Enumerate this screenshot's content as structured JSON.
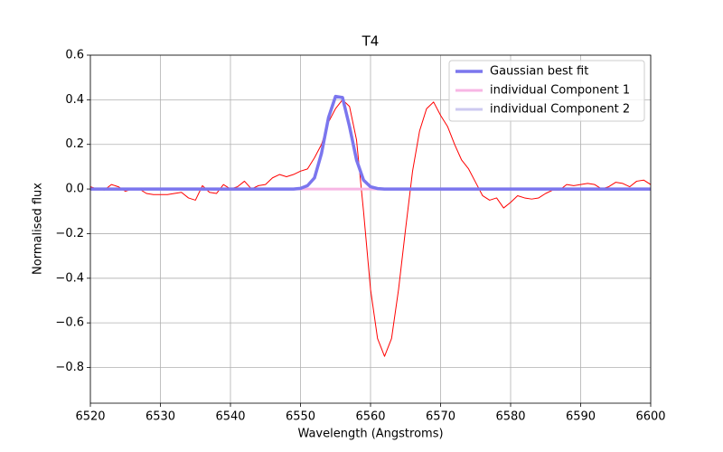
{
  "chart_data": {
    "type": "line",
    "title": "T4",
    "xlabel": "Wavelength (Angstroms)",
    "ylabel": "Normalised flux",
    "x": [
      6520,
      6521,
      6522,
      6523,
      6524,
      6525,
      6526,
      6527,
      6528,
      6529,
      6530,
      6531,
      6532,
      6533,
      6534,
      6535,
      6536,
      6537,
      6538,
      6539,
      6540,
      6541,
      6542,
      6543,
      6544,
      6545,
      6546,
      6547,
      6548,
      6549,
      6550,
      6551,
      6552,
      6553,
      6554,
      6555,
      6556,
      6557,
      6558,
      6559,
      6560,
      6561,
      6562,
      6563,
      6564,
      6565,
      6566,
      6567,
      6568,
      6569,
      6570,
      6571,
      6572,
      6573,
      6574,
      6575,
      6576,
      6577,
      6578,
      6579,
      6580,
      6581,
      6582,
      6583,
      6584,
      6585,
      6586,
      6587,
      6588,
      6589,
      6590,
      6591,
      6592,
      6593,
      6594,
      6595,
      6596,
      6597,
      6598,
      6599,
      6600
    ],
    "series": [
      {
        "color": "#ff0000",
        "width": 1,
        "values": [
          0.01,
          0.0,
          -0.005,
          0.02,
          0.01,
          -0.01,
          0.0,
          0.0,
          -0.02,
          -0.025,
          -0.025,
          -0.025,
          -0.02,
          -0.015,
          -0.04,
          -0.05,
          0.015,
          -0.015,
          -0.02,
          0.02,
          0.0,
          0.01,
          0.035,
          0.0,
          0.015,
          0.02,
          0.05,
          0.065,
          0.055,
          0.065,
          0.08,
          0.09,
          0.14,
          0.2,
          0.3,
          0.36,
          0.4,
          0.37,
          0.22,
          -0.1,
          -0.45,
          -0.67,
          -0.75,
          -0.67,
          -0.45,
          -0.18,
          0.08,
          0.26,
          0.36,
          0.39,
          0.33,
          0.28,
          0.2,
          0.13,
          0.09,
          0.03,
          -0.03,
          -0.05,
          -0.04,
          -0.085,
          -0.06,
          -0.03,
          -0.04,
          -0.045,
          -0.04,
          -0.02,
          -0.005,
          -0.005,
          0.02,
          0.015,
          0.02,
          0.025,
          0.02,
          0.0,
          0.01,
          0.03,
          0.025,
          0.01,
          0.035,
          0.04,
          0.02
        ]
      },
      {
        "name": "individual Component 1",
        "color": "#f7b6e4",
        "width": 3,
        "values": [
          0,
          0,
          0,
          0,
          0,
          0,
          0,
          0,
          0,
          0,
          0,
          0,
          0,
          0,
          0,
          0,
          0,
          0,
          0,
          0,
          0,
          0,
          0,
          0,
          0,
          0,
          0,
          0,
          0,
          0,
          0,
          0,
          0,
          0,
          0,
          0,
          0,
          0,
          0,
          0,
          0,
          0,
          0,
          0,
          0,
          0,
          0,
          0,
          0,
          0,
          0,
          0,
          0,
          0,
          0,
          0,
          0,
          0,
          0,
          0,
          0,
          0,
          0,
          0,
          0,
          0,
          0,
          0,
          0,
          0,
          0,
          0,
          0,
          0,
          0,
          0,
          0,
          0,
          0,
          0,
          0
        ]
      },
      {
        "name": "individual Component 2",
        "color": "#cdc9f0",
        "width": 3,
        "values": [
          0,
          0,
          0,
          0,
          0,
          0,
          0,
          0,
          0,
          0,
          0,
          0,
          0,
          0,
          0,
          0,
          0,
          0,
          0,
          0,
          0,
          0,
          0,
          0,
          0,
          0,
          0,
          0,
          0,
          0,
          0.003,
          0.015,
          0.05,
          0.16,
          0.32,
          0.415,
          0.41,
          0.28,
          0.13,
          0.04,
          0.01,
          0.002,
          0,
          0,
          0,
          0,
          0,
          0,
          0,
          0,
          0,
          0,
          0,
          0,
          0,
          0,
          0,
          0,
          0,
          0,
          0,
          0,
          0,
          0,
          0,
          0,
          0,
          0,
          0,
          0,
          0,
          0,
          0,
          0,
          0,
          0,
          0,
          0,
          0,
          0,
          0
        ]
      },
      {
        "name": "Gaussian best fit",
        "color": "#7b76ee",
        "width": 3.5,
        "values": [
          0,
          0,
          0,
          0,
          0,
          0,
          0,
          0,
          0,
          0,
          0,
          0,
          0,
          0,
          0,
          0,
          0,
          0,
          0,
          0,
          0,
          0,
          0,
          0,
          0,
          0,
          0,
          0,
          0,
          0,
          0.003,
          0.015,
          0.05,
          0.16,
          0.32,
          0.415,
          0.41,
          0.28,
          0.13,
          0.04,
          0.01,
          0.002,
          0,
          0,
          0,
          0,
          0,
          0,
          0,
          0,
          0,
          0,
          0,
          0,
          0,
          0,
          0,
          0,
          0,
          0,
          0,
          0,
          0,
          0,
          0,
          0,
          0,
          0,
          0,
          0,
          0,
          0,
          0,
          0,
          0,
          0,
          0,
          0,
          0,
          0,
          0
        ]
      }
    ],
    "legend_order": [
      "Gaussian best fit",
      "individual Component 1",
      "individual Component 2"
    ],
    "xlim": [
      6520,
      6600
    ],
    "xticks": [
      6520,
      6530,
      6540,
      6550,
      6560,
      6570,
      6580,
      6590,
      6600
    ],
    "ylim": [
      -0.96,
      0.6
    ],
    "yticks": [
      {
        "value": -0.8,
        "label": "−0.8"
      },
      {
        "value": -0.6,
        "label": "−0.6"
      },
      {
        "value": -0.4,
        "label": "−0.4"
      },
      {
        "value": -0.2,
        "label": "−0.2"
      },
      {
        "value": 0,
        "label": "0.0"
      },
      0.2,
      0.4,
      0.6
    ],
    "grid": true,
    "legend": "upper right"
  }
}
